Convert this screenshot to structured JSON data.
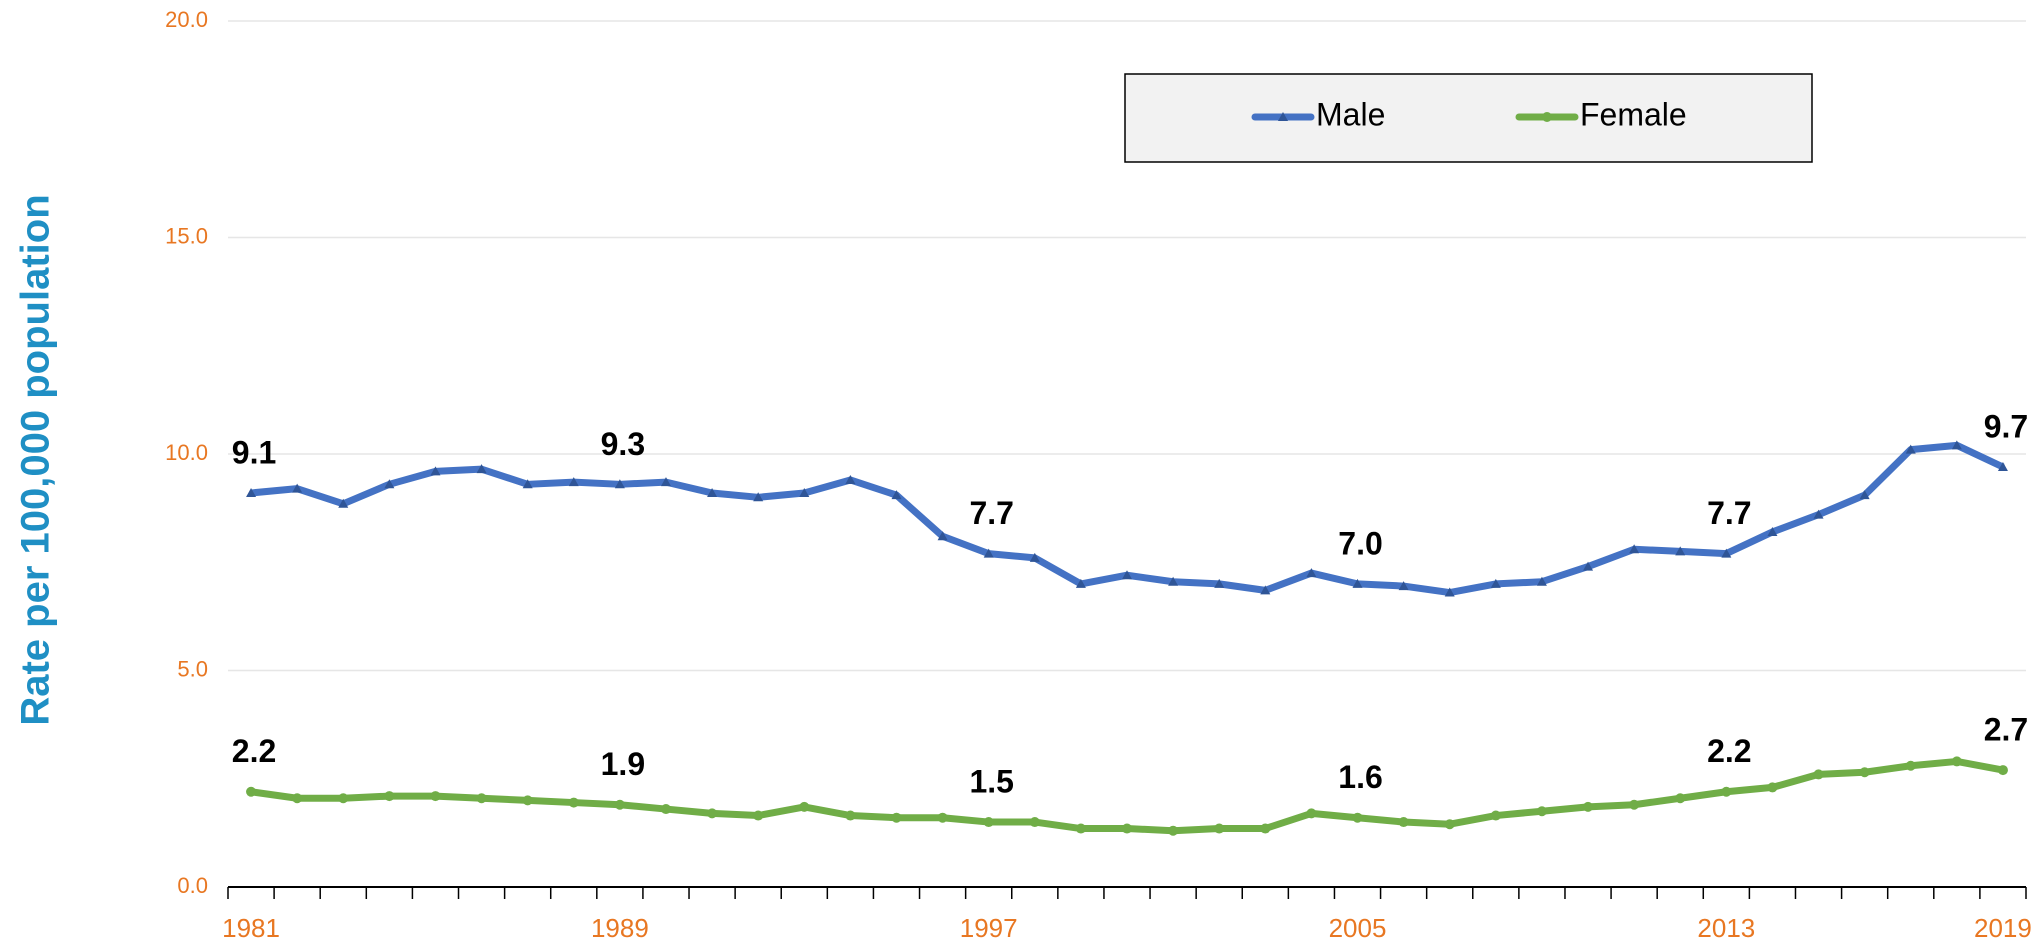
{
  "chart_data": {
    "type": "line",
    "y_label": "Rate per 100,000 population",
    "categories": [
      "1981",
      null,
      null,
      null,
      null,
      null,
      null,
      null,
      "1989",
      null,
      null,
      null,
      null,
      null,
      null,
      null,
      "1997",
      null,
      null,
      null,
      null,
      null,
      null,
      null,
      "2005",
      null,
      null,
      null,
      null,
      null,
      null,
      null,
      "2013",
      null,
      null,
      null,
      null,
      null,
      "2019"
    ],
    "series": [
      {
        "name": "Male",
        "color": "#4472c4",
        "marker": "triangle",
        "values": [
          9.1,
          9.2,
          8.85,
          9.3,
          9.6,
          9.65,
          9.3,
          9.35,
          9.3,
          9.35,
          9.1,
          9.0,
          9.1,
          9.4,
          9.05,
          8.1,
          7.7,
          7.6,
          7.0,
          7.2,
          7.05,
          7.0,
          6.85,
          7.25,
          7.0,
          6.95,
          6.8,
          7.0,
          7.05,
          7.4,
          7.8,
          7.75,
          7.7,
          8.2,
          8.6,
          9.05,
          10.1,
          10.2,
          9.7
        ],
        "value_labels": [
          "9.1",
          null,
          null,
          null,
          null,
          null,
          null,
          null,
          "9.3",
          null,
          null,
          null,
          null,
          null,
          null,
          null,
          "7.7",
          null,
          null,
          null,
          null,
          null,
          null,
          null,
          "7.0",
          null,
          null,
          null,
          null,
          null,
          null,
          null,
          "7.7",
          null,
          null,
          null,
          null,
          null,
          "9.7"
        ]
      },
      {
        "name": "Female",
        "color": "#70ad47",
        "marker": "circle",
        "values": [
          2.2,
          2.05,
          2.05,
          2.1,
          2.1,
          2.05,
          2.0,
          1.95,
          1.9,
          1.8,
          1.7,
          1.65,
          1.85,
          1.65,
          1.6,
          1.6,
          1.5,
          1.5,
          1.35,
          1.35,
          1.3,
          1.35,
          1.35,
          1.7,
          1.6,
          1.5,
          1.45,
          1.65,
          1.75,
          1.85,
          1.9,
          2.05,
          2.2,
          2.3,
          2.6,
          2.65,
          2.8,
          2.9,
          2.7
        ],
        "value_labels": [
          "2.2",
          null,
          null,
          null,
          null,
          null,
          null,
          null,
          "1.9",
          null,
          null,
          null,
          null,
          null,
          null,
          null,
          "1.5",
          null,
          null,
          null,
          null,
          null,
          null,
          null,
          "1.6",
          null,
          null,
          null,
          null,
          null,
          null,
          null,
          "2.2",
          null,
          null,
          null,
          null,
          null,
          "2.7"
        ]
      }
    ],
    "ylim": [
      0,
      20
    ],
    "yticks": [
      {
        "value": 0,
        "label": "0.0"
      },
      {
        "value": 5,
        "label": "5.0"
      },
      {
        "value": 10,
        "label": "10.0"
      },
      {
        "value": 15,
        "label": "15.0"
      },
      {
        "value": 20,
        "label": "20.0"
      }
    ],
    "grid": true,
    "legend": "top-right"
  }
}
